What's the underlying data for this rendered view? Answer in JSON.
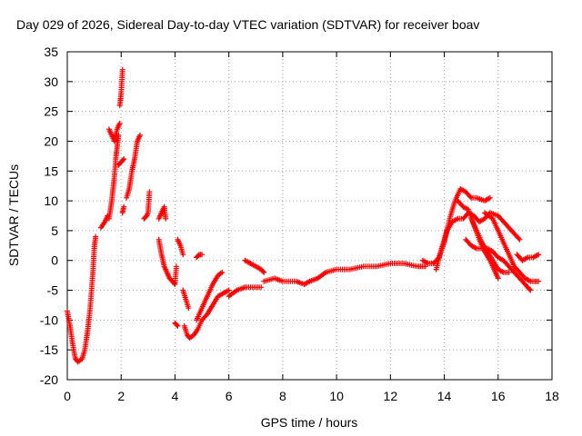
{
  "chart_data": {
    "type": "scatter",
    "title": "Day 029 of 2026, Sidereal Day-to-day VTEC variation (SDTVAR) for receiver boav",
    "xlabel": "GPS time / hours",
    "ylabel": "SDTVAR / TECUs",
    "xlim": [
      0,
      18
    ],
    "ylim": [
      -20,
      35
    ],
    "xticks": [
      0,
      2,
      4,
      6,
      8,
      10,
      12,
      14,
      16,
      18
    ],
    "yticks": [
      -20,
      -15,
      -10,
      -5,
      0,
      5,
      10,
      15,
      20,
      25,
      30,
      35
    ],
    "grid": true,
    "marker": "+",
    "series": [
      {
        "name": "SDTVAR",
        "color": "#ff0000",
        "segments": [
          [
            [
              0.0,
              -8.5
            ],
            [
              0.1,
              -11
            ],
            [
              0.2,
              -14
            ],
            [
              0.3,
              -16.5
            ],
            [
              0.4,
              -17
            ]
          ],
          [
            [
              0.4,
              -17
            ],
            [
              0.55,
              -16.5
            ],
            [
              0.65,
              -15
            ],
            [
              0.75,
              -12
            ],
            [
              0.85,
              -8
            ],
            [
              0.95,
              -2
            ],
            [
              1.0,
              2
            ],
            [
              1.05,
              4
            ]
          ],
          [
            [
              1.25,
              5.5
            ],
            [
              1.4,
              6.5
            ],
            [
              1.5,
              7.5
            ]
          ],
          [
            [
              1.55,
              22
            ],
            [
              1.65,
              21
            ],
            [
              1.75,
              20
            ],
            [
              1.85,
              22
            ],
            [
              1.95,
              23
            ]
          ],
          [
            [
              1.55,
              7
            ],
            [
              1.65,
              10
            ],
            [
              1.75,
              14
            ],
            [
              1.8,
              17
            ],
            [
              1.85,
              19
            ],
            [
              1.9,
              21
            ]
          ],
          [
            [
              1.95,
              26
            ],
            [
              2.0,
              28
            ],
            [
              2.05,
              32
            ]
          ],
          [
            [
              1.9,
              16
            ],
            [
              2.0,
              16.5
            ],
            [
              2.1,
              17
            ]
          ],
          [
            [
              2.05,
              8
            ],
            [
              2.1,
              9
            ]
          ],
          [
            [
              2.2,
              10.5
            ],
            [
              2.3,
              12
            ],
            [
              2.4,
              15
            ],
            [
              2.5,
              17
            ],
            [
              2.6,
              20
            ],
            [
              2.7,
              21
            ]
          ],
          [
            [
              2.85,
              7
            ],
            [
              2.95,
              7.5
            ],
            [
              3.0,
              8
            ],
            [
              3.05,
              11.5
            ]
          ],
          [
            [
              3.4,
              7
            ],
            [
              3.5,
              8
            ],
            [
              3.6,
              9
            ],
            [
              3.65,
              7
            ]
          ],
          [
            [
              3.4,
              3.5
            ],
            [
              3.5,
              1
            ],
            [
              3.6,
              -1
            ],
            [
              3.7,
              -2
            ],
            [
              3.8,
              -3
            ],
            [
              3.9,
              -3.5
            ],
            [
              4.0,
              -4
            ],
            [
              4.05,
              -1
            ]
          ],
          [
            [
              4.1,
              3.5
            ],
            [
              4.2,
              2.5
            ],
            [
              4.3,
              1
            ]
          ],
          [
            [
              4.0,
              -10.5
            ],
            [
              4.1,
              -11
            ]
          ],
          [
            [
              4.3,
              -5
            ],
            [
              4.4,
              -6.5
            ],
            [
              4.5,
              -8
            ]
          ],
          [
            [
              4.35,
              -11
            ],
            [
              4.45,
              -12.5
            ],
            [
              4.55,
              -13
            ],
            [
              4.7,
              -12.5
            ],
            [
              4.85,
              -11.5
            ],
            [
              5.0,
              -10
            ],
            [
              5.2,
              -9
            ],
            [
              5.4,
              -7.5
            ],
            [
              5.6,
              -6
            ],
            [
              5.8,
              -5.5
            ],
            [
              6.0,
              -5
            ]
          ],
          [
            [
              4.8,
              0.5
            ],
            [
              4.9,
              1
            ],
            [
              5.0,
              1
            ]
          ],
          [
            [
              4.8,
              -10
            ],
            [
              5.0,
              -8
            ],
            [
              5.2,
              -6
            ],
            [
              5.4,
              -4
            ],
            [
              5.6,
              -2.5
            ],
            [
              5.75,
              -2
            ]
          ],
          [
            [
              6.0,
              -6
            ],
            [
              6.3,
              -5
            ],
            [
              6.6,
              -4.5
            ],
            [
              7.0,
              -4.5
            ],
            [
              7.2,
              -4.5
            ]
          ],
          [
            [
              6.6,
              0
            ],
            [
              6.8,
              -0.5
            ],
            [
              7.0,
              -1
            ],
            [
              7.2,
              -1.5
            ],
            [
              7.3,
              -2
            ]
          ],
          [
            [
              7.3,
              -3.5
            ],
            [
              7.7,
              -3
            ],
            [
              8.0,
              -3.5
            ],
            [
              8.5,
              -3.5
            ],
            [
              8.8,
              -4
            ],
            [
              9.0,
              -3.5
            ],
            [
              9.3,
              -3
            ],
            [
              9.6,
              -2
            ],
            [
              10.0,
              -1.5
            ],
            [
              10.5,
              -1.5
            ],
            [
              11.0,
              -1
            ],
            [
              11.5,
              -1
            ],
            [
              12.0,
              -0.5
            ],
            [
              12.5,
              -0.5
            ],
            [
              13.0,
              -1
            ],
            [
              13.3,
              -1
            ]
          ],
          [
            [
              13.2,
              0
            ],
            [
              13.4,
              -0.5
            ],
            [
              13.6,
              -0.5
            ],
            [
              13.8,
              0.5
            ],
            [
              14.0,
              3
            ],
            [
              14.2,
              7
            ],
            [
              14.4,
              10
            ],
            [
              14.6,
              12
            ],
            [
              14.8,
              11.5
            ],
            [
              15.0,
              10.5
            ],
            [
              15.2,
              10.5
            ],
            [
              15.5,
              10
            ],
            [
              15.7,
              10.5
            ]
          ],
          [
            [
              13.7,
              -1.5
            ],
            [
              13.9,
              2
            ],
            [
              14.1,
              5
            ],
            [
              14.3,
              6.5
            ],
            [
              14.5,
              7
            ],
            [
              14.7,
              7
            ],
            [
              14.9,
              8
            ],
            [
              15.1,
              7.5
            ],
            [
              15.3,
              6.5
            ],
            [
              15.5,
              7
            ],
            [
              15.7,
              8
            ],
            [
              16.0,
              7.5
            ],
            [
              16.3,
              6
            ],
            [
              16.6,
              4.5
            ],
            [
              16.8,
              3.5
            ]
          ],
          [
            [
              14.5,
              10
            ],
            [
              14.7,
              9
            ],
            [
              14.9,
              8.5
            ],
            [
              15.1,
              6
            ],
            [
              15.3,
              3.5
            ],
            [
              15.5,
              1.5
            ],
            [
              15.7,
              0
            ],
            [
              15.9,
              -2
            ],
            [
              16.0,
              -3
            ]
          ],
          [
            [
              15.0,
              7
            ],
            [
              15.2,
              5
            ],
            [
              15.4,
              3
            ],
            [
              15.6,
              1.5
            ],
            [
              15.8,
              0
            ],
            [
              16.0,
              -1.5
            ],
            [
              16.2,
              -2
            ],
            [
              16.4,
              -2
            ]
          ],
          [
            [
              14.8,
              3.5
            ],
            [
              15.0,
              2.5
            ],
            [
              15.2,
              2
            ],
            [
              15.4,
              2
            ],
            [
              15.6,
              2
            ],
            [
              15.8,
              1.5
            ],
            [
              16.0,
              0.5
            ],
            [
              16.2,
              0
            ],
            [
              16.4,
              -1
            ],
            [
              16.7,
              -2.5
            ],
            [
              16.9,
              -3.5
            ],
            [
              17.1,
              -4.5
            ],
            [
              17.2,
              -5
            ]
          ],
          [
            [
              15.5,
              8
            ],
            [
              15.8,
              7
            ],
            [
              16.0,
              5
            ],
            [
              16.2,
              3
            ],
            [
              16.4,
              1
            ],
            [
              16.6,
              -1
            ],
            [
              16.8,
              -2
            ],
            [
              17.0,
              -3
            ],
            [
              17.2,
              -3.5
            ],
            [
              17.5,
              -3.5
            ]
          ],
          [
            [
              16.7,
              1
            ],
            [
              16.9,
              0
            ],
            [
              17.1,
              0.5
            ],
            [
              17.3,
              0.5
            ],
            [
              17.5,
              1
            ]
          ]
        ]
      }
    ]
  }
}
